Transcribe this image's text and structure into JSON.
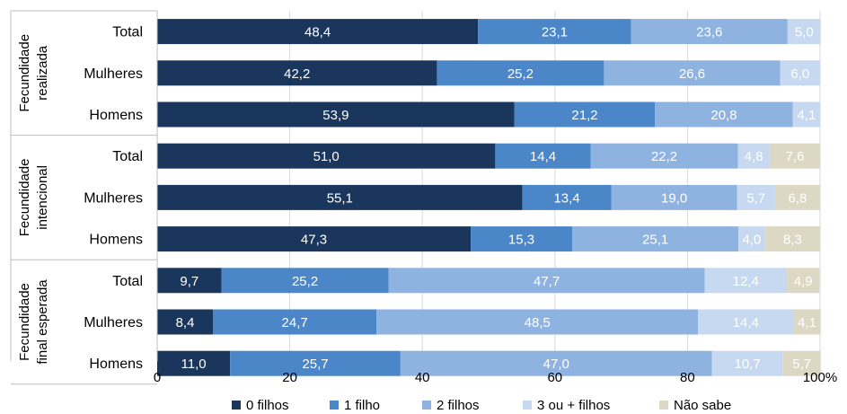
{
  "chart_data": {
    "type": "bar",
    "orientation": "horizontal",
    "stacked": true,
    "xlim": [
      0,
      100
    ],
    "x_ticks": [
      "0",
      "20",
      "40",
      "60",
      "80",
      "100%"
    ],
    "grid": true,
    "legend_position": "bottom",
    "groups": [
      {
        "label_lines": [
          "Fecundidade",
          "realizada"
        ],
        "rows": [
          {
            "label": "Total",
            "values": [
              48.4,
              23.1,
              23.6,
              5.0,
              null
            ],
            "labels": [
              "48,4",
              "23,1",
              "23,6",
              "5,0",
              ""
            ]
          },
          {
            "label": "Mulheres",
            "values": [
              42.2,
              25.2,
              26.6,
              6.0,
              null
            ],
            "labels": [
              "42,2",
              "25,2",
              "26,6",
              "6,0",
              ""
            ]
          },
          {
            "label": "Homens",
            "values": [
              53.9,
              21.2,
              20.8,
              4.1,
              null
            ],
            "labels": [
              "53,9",
              "21,2",
              "20,8",
              "4,1",
              ""
            ]
          }
        ]
      },
      {
        "label_lines": [
          "Fecundidade",
          "intencional"
        ],
        "rows": [
          {
            "label": "Total",
            "values": [
              51.0,
              14.4,
              22.2,
              4.8,
              7.6
            ],
            "labels": [
              "51,0",
              "14,4",
              "22,2",
              "4,8",
              "7,6"
            ]
          },
          {
            "label": "Mulheres",
            "values": [
              55.1,
              13.4,
              19.0,
              5.7,
              6.8
            ],
            "labels": [
              "55,1",
              "13,4",
              "19,0",
              "5,7",
              "6,8"
            ]
          },
          {
            "label": "Homens",
            "values": [
              47.3,
              15.3,
              25.1,
              4.0,
              8.3
            ],
            "labels": [
              "47,3",
              "15,3",
              "25,1",
              "4,0",
              "8,3"
            ]
          }
        ]
      },
      {
        "label_lines": [
          "Fecundidade",
          "final esperada"
        ],
        "rows": [
          {
            "label": "Total",
            "values": [
              9.7,
              25.2,
              47.7,
              12.4,
              4.9
            ],
            "labels": [
              "9,7",
              "25,2",
              "47,7",
              "12,4",
              "4,9"
            ]
          },
          {
            "label": "Mulheres",
            "values": [
              8.4,
              24.7,
              48.5,
              14.4,
              4.1
            ],
            "labels": [
              "8,4",
              "24,7",
              "48,5",
              "14,4",
              "4,1"
            ]
          },
          {
            "label": "Homens",
            "values": [
              11.0,
              25.7,
              47.0,
              10.7,
              5.7
            ],
            "labels": [
              "11,0",
              "25,7",
              "47,0",
              "10,7",
              "5,7"
            ]
          }
        ]
      }
    ],
    "series": [
      {
        "name": "0 filhos",
        "color": "#1b365d",
        "label_color": "#ffffff"
      },
      {
        "name": "1 filho",
        "color": "#4a86c8",
        "label_color": "#ffffff"
      },
      {
        "name": "2 filhos",
        "color": "#8fb3e0",
        "label_color": "#ffffff"
      },
      {
        "name": "3 ou + filhos",
        "color": "#c6d9f0",
        "label_color": "#ffffff"
      },
      {
        "name": "Não sabe",
        "color": "#ddd8c4",
        "label_color": "#ffffff"
      }
    ],
    "dark_label_color": "#1a1a1a"
  }
}
